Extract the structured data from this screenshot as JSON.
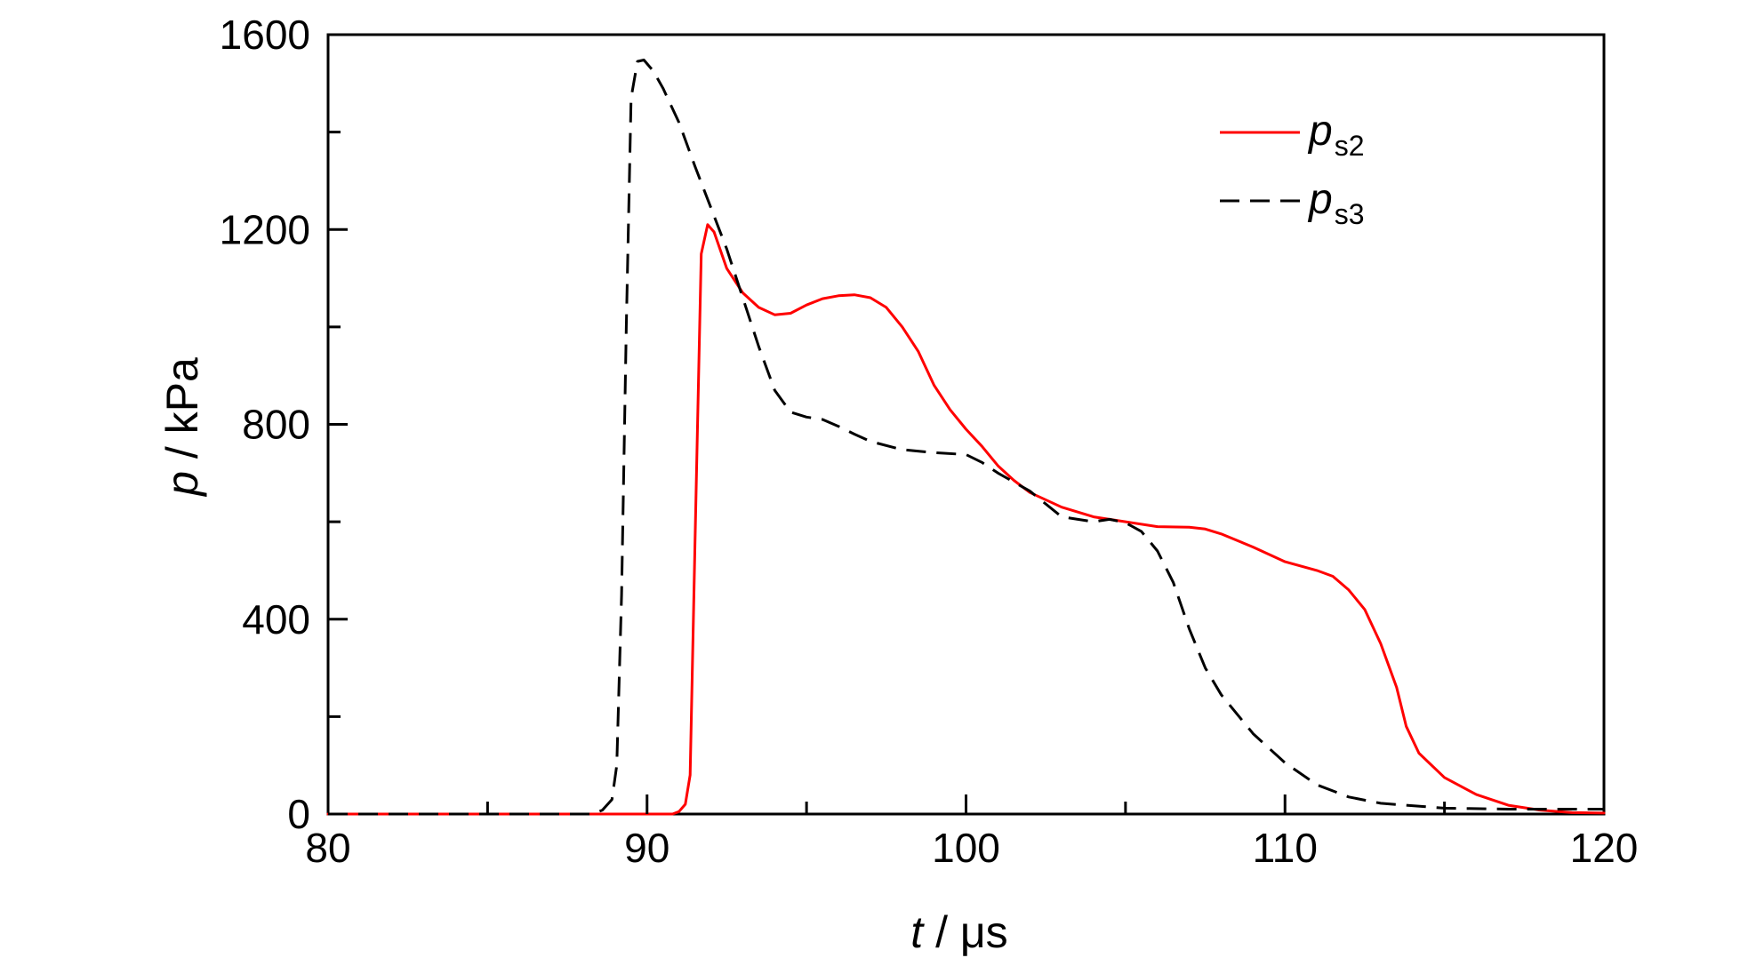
{
  "chart_data": {
    "type": "line",
    "xlabel": {
      "var": "t",
      "unit": " / μs"
    },
    "ylabel": {
      "var": "p",
      "unit": " / kPa"
    },
    "xlim": [
      80,
      120
    ],
    "ylim": [
      0,
      1600
    ],
    "xticks": [
      80,
      90,
      100,
      110,
      120
    ],
    "yticks": [
      0,
      400,
      800,
      1200,
      1600
    ],
    "x_minor_ticks": [
      85,
      95,
      105,
      115
    ],
    "y_minor_ticks": [
      200,
      600,
      1000,
      1400
    ],
    "grid": false,
    "legend_position": "top-right",
    "series": [
      {
        "name": "ps2",
        "label_main": "p",
        "label_sub": "s2",
        "color": "#ff0000",
        "style": "solid",
        "points": [
          [
            80,
            0
          ],
          [
            90.8,
            0
          ],
          [
            91.0,
            5
          ],
          [
            91.2,
            20
          ],
          [
            91.35,
            80
          ],
          [
            91.5,
            550
          ],
          [
            91.7,
            1150
          ],
          [
            91.9,
            1210
          ],
          [
            92.1,
            1195
          ],
          [
            92.5,
            1120
          ],
          [
            93.0,
            1070
          ],
          [
            93.5,
            1040
          ],
          [
            94.0,
            1025
          ],
          [
            94.5,
            1028
          ],
          [
            95.0,
            1045
          ],
          [
            95.5,
            1058
          ],
          [
            96.0,
            1064
          ],
          [
            96.5,
            1066
          ],
          [
            97.0,
            1060
          ],
          [
            97.5,
            1040
          ],
          [
            98.0,
            1000
          ],
          [
            98.5,
            950
          ],
          [
            99.0,
            880
          ],
          [
            99.5,
            830
          ],
          [
            100.0,
            790
          ],
          [
            100.5,
            755
          ],
          [
            101.0,
            715
          ],
          [
            101.5,
            685
          ],
          [
            102.0,
            660
          ],
          [
            103.0,
            630
          ],
          [
            104.0,
            610
          ],
          [
            105.0,
            600
          ],
          [
            106.0,
            590
          ],
          [
            107.0,
            589
          ],
          [
            107.5,
            585
          ],
          [
            108.0,
            575
          ],
          [
            109.0,
            548
          ],
          [
            110.0,
            518
          ],
          [
            111.0,
            500
          ],
          [
            111.5,
            488
          ],
          [
            112.0,
            460
          ],
          [
            112.5,
            420
          ],
          [
            113.0,
            350
          ],
          [
            113.5,
            260
          ],
          [
            113.8,
            180
          ],
          [
            114.2,
            125
          ],
          [
            115.0,
            75
          ],
          [
            116.0,
            40
          ],
          [
            117.0,
            18
          ],
          [
            118.0,
            8
          ],
          [
            119.0,
            3
          ],
          [
            120.0,
            2
          ]
        ]
      },
      {
        "name": "ps3",
        "label_main": "p",
        "label_sub": "s3",
        "color": "#000000",
        "style": "dashed",
        "points": [
          [
            80,
            0
          ],
          [
            88.3,
            0
          ],
          [
            88.6,
            8
          ],
          [
            88.9,
            30
          ],
          [
            89.05,
            100
          ],
          [
            89.2,
            450
          ],
          [
            89.35,
            1000
          ],
          [
            89.5,
            1470
          ],
          [
            89.7,
            1545
          ],
          [
            89.9,
            1548
          ],
          [
            90.2,
            1525
          ],
          [
            90.5,
            1490
          ],
          [
            91.0,
            1420
          ],
          [
            91.5,
            1330
          ],
          [
            92.0,
            1245
          ],
          [
            92.5,
            1160
          ],
          [
            93.0,
            1060
          ],
          [
            93.5,
            960
          ],
          [
            94.0,
            870
          ],
          [
            94.5,
            825
          ],
          [
            95.0,
            815
          ],
          [
            95.5,
            810
          ],
          [
            96.0,
            796
          ],
          [
            96.5,
            780
          ],
          [
            97.0,
            765
          ],
          [
            98.0,
            748
          ],
          [
            99.0,
            742
          ],
          [
            100.0,
            738
          ],
          [
            100.5,
            722
          ],
          [
            101.0,
            700
          ],
          [
            102.0,
            663
          ],
          [
            103.0,
            610
          ],
          [
            104.0,
            600
          ],
          [
            104.5,
            605
          ],
          [
            105.0,
            598
          ],
          [
            105.5,
            580
          ],
          [
            106.0,
            540
          ],
          [
            106.5,
            475
          ],
          [
            107.0,
            380
          ],
          [
            107.5,
            300
          ],
          [
            108.0,
            245
          ],
          [
            109.0,
            165
          ],
          [
            110.0,
            105
          ],
          [
            111.0,
            60
          ],
          [
            112.0,
            35
          ],
          [
            113.0,
            22
          ],
          [
            115.0,
            12
          ],
          [
            117.0,
            10
          ],
          [
            120.0,
            10
          ]
        ]
      }
    ]
  }
}
